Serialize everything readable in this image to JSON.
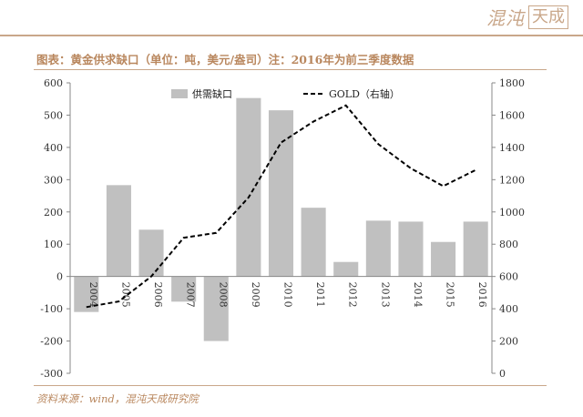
{
  "branding": {
    "logo_script": "混沌",
    "logo_box": "天成"
  },
  "caption": "图表：黄金供求缺口（单位：吨，美元/盎司）注：2016年为前三季度数据",
  "source": "资料来源：wind，混沌天成研究院",
  "colors": {
    "accent": "#c9a78a",
    "caption_text": "#b9875e",
    "bar": "#c0c0c0",
    "line": "#000000"
  },
  "chart_data": {
    "type": "bar",
    "categories": [
      "2004",
      "2005",
      "2006",
      "2007",
      "2008",
      "2009",
      "2010",
      "2011",
      "2012",
      "2013",
      "2014",
      "2015",
      "2016"
    ],
    "series": [
      {
        "name": "供需缺口",
        "type": "bar",
        "axis": "left",
        "values": [
          -110,
          283,
          145,
          -78,
          -200,
          553,
          515,
          213,
          45,
          173,
          170,
          107,
          170
        ]
      },
      {
        "name": "GOLD（右轴）",
        "type": "line",
        "axis": "right",
        "dashed": true,
        "values": [
          410,
          445,
          600,
          840,
          870,
          1090,
          1430,
          1560,
          1660,
          1420,
          1270,
          1160,
          1260
        ]
      }
    ],
    "yaxis_left": {
      "ylim": [
        -300,
        600
      ],
      "ticks": [
        -300,
        -200,
        -100,
        0,
        100,
        200,
        300,
        400,
        500,
        600
      ]
    },
    "yaxis_right": {
      "ylim": [
        0,
        1800
      ],
      "ticks": [
        0,
        200,
        400,
        600,
        800,
        1000,
        1200,
        1400,
        1600,
        1800
      ]
    },
    "legend": [
      "供需缺口",
      "GOLD（右轴）"
    ],
    "legend_position": "top",
    "grid": false
  }
}
